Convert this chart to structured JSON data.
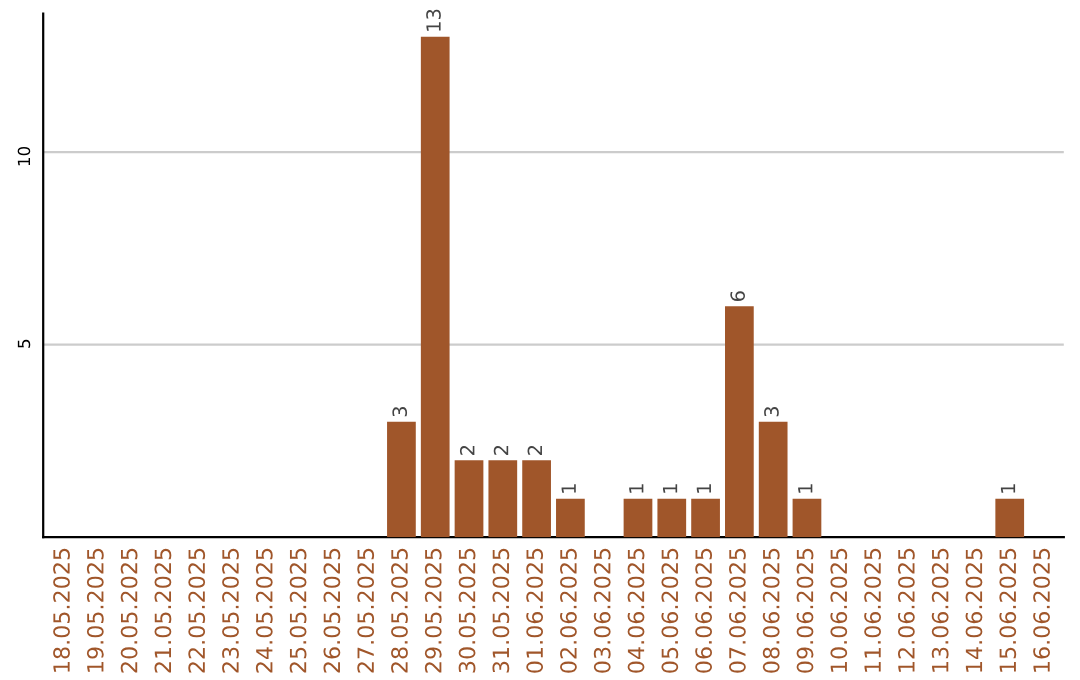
{
  "chart_data": {
    "type": "bar",
    "categories": [
      "18.05.2025",
      "19.05.2025",
      "20.05.2025",
      "21.05.2025",
      "22.05.2025",
      "23.05.2025",
      "24.05.2025",
      "25.05.2025",
      "26.05.2025",
      "27.05.2025",
      "28.05.2025",
      "29.05.2025",
      "30.05.2025",
      "31.05.2025",
      "01.06.2025",
      "02.06.2025",
      "03.06.2025",
      "04.06.2025",
      "05.06.2025",
      "06.06.2025",
      "07.06.2025",
      "08.06.2025",
      "09.06.2025",
      "10.06.2025",
      "11.06.2025",
      "12.06.2025",
      "13.06.2025",
      "14.06.2025",
      "15.06.2025",
      "16.06.2025"
    ],
    "values": [
      0,
      0,
      0,
      0,
      0,
      0,
      0,
      0,
      0,
      0,
      3,
      13,
      2,
      2,
      2,
      1,
      0,
      1,
      1,
      1,
      6,
      3,
      1,
      0,
      0,
      0,
      0,
      0,
      1,
      0
    ],
    "value_labels": [
      null,
      null,
      null,
      null,
      null,
      null,
      null,
      null,
      null,
      null,
      "3",
      "13",
      "2",
      "2",
      "2",
      "1",
      null,
      "1",
      "1",
      "1",
      "6",
      "3",
      "1",
      null,
      null,
      null,
      null,
      null,
      "1",
      null
    ],
    "color": "#a0562a",
    "ylim": [
      0,
      13.6
    ],
    "yticks": [
      5,
      10
    ],
    "grid": "y"
  }
}
